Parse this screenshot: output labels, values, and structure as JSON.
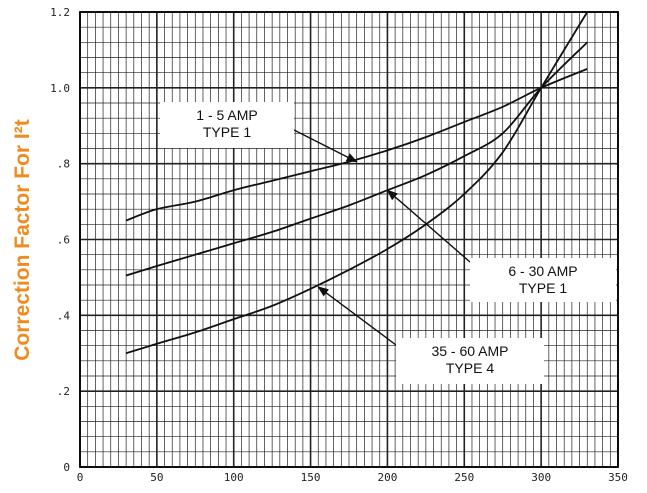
{
  "chart_data": {
    "type": "line",
    "title": "",
    "xlabel": "",
    "ylabel": "Correction Factor For I²t",
    "xlim": [
      0,
      350
    ],
    "ylim": [
      0,
      1.2
    ],
    "x_ticks": [
      0,
      50,
      100,
      150,
      200,
      250,
      300,
      350
    ],
    "x_tick_labels": [
      "0",
      "50",
      "100",
      "150",
      "200",
      "250",
      "300",
      "350"
    ],
    "y_ticks": [
      0,
      0.2,
      0.4,
      0.6,
      0.8,
      1.0,
      1.2
    ],
    "y_tick_labels": [
      "0",
      ".2",
      ".4",
      ".6",
      ".8",
      "1.0",
      "1.2"
    ],
    "grid": true,
    "series": [
      {
        "name": "1 - 5 AMP TYPE 1",
        "x": [
          30,
          50,
          75,
          100,
          125,
          150,
          175,
          200,
          225,
          250,
          275,
          300,
          330
        ],
        "values": [
          0.65,
          0.68,
          0.7,
          0.73,
          0.755,
          0.78,
          0.805,
          0.835,
          0.87,
          0.91,
          0.95,
          1.0,
          1.05
        ]
      },
      {
        "name": "6 - 30 AMP TYPE 1",
        "x": [
          30,
          50,
          75,
          100,
          125,
          150,
          175,
          200,
          225,
          250,
          275,
          300,
          330
        ],
        "values": [
          0.505,
          0.53,
          0.56,
          0.59,
          0.62,
          0.655,
          0.69,
          0.73,
          0.77,
          0.82,
          0.88,
          1.0,
          1.12
        ]
      },
      {
        "name": "35 - 60 AMP TYPE 4",
        "x": [
          30,
          50,
          75,
          100,
          125,
          150,
          175,
          200,
          225,
          250,
          275,
          300,
          330
        ],
        "values": [
          0.3,
          0.325,
          0.355,
          0.39,
          0.425,
          0.47,
          0.52,
          0.575,
          0.64,
          0.72,
          0.83,
          1.0,
          1.2
        ]
      }
    ],
    "annotations": [
      {
        "lines": [
          "1 - 5 AMP",
          "TYPE 1"
        ],
        "series": "1 - 5 AMP TYPE 1",
        "points_to": [
          180,
          0.805
        ]
      },
      {
        "lines": [
          "6 - 30 AMP",
          "TYPE 1"
        ],
        "series": "6 - 30 AMP TYPE 1",
        "points_to": [
          200,
          0.73
        ]
      },
      {
        "lines": [
          "35 - 60 AMP",
          "TYPE 4"
        ],
        "series": "35 - 60 AMP TYPE 4",
        "points_to": [
          155,
          0.475
        ]
      }
    ],
    "colors": {
      "curve": "#111111",
      "grid": "#222222",
      "ylabel": "#f08a1e"
    }
  }
}
